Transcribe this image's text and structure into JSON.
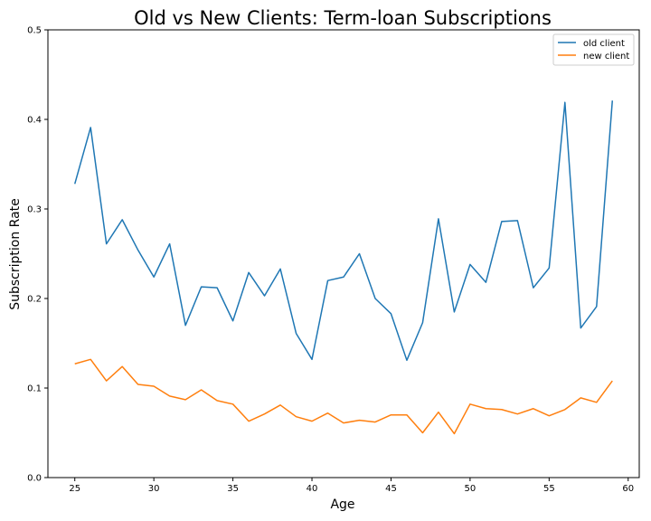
{
  "chart_data": {
    "type": "line",
    "title": "Old vs New Clients: Term-loan Subscriptions",
    "xlabel": "Age",
    "ylabel": "Subscription Rate",
    "xlim": [
      23.3,
      60.7
    ],
    "ylim": [
      0.0,
      0.5
    ],
    "xticks": [
      "25",
      "30",
      "35",
      "40",
      "45",
      "50",
      "55",
      "60"
    ],
    "yticks": [
      "0.0",
      "0.1",
      "0.2",
      "0.3",
      "0.4",
      "0.5"
    ],
    "grid": false,
    "legend_position": "top-right",
    "x": [
      25,
      26,
      27,
      28,
      29,
      30,
      31,
      32,
      33,
      34,
      35,
      36,
      37,
      38,
      39,
      40,
      41,
      42,
      43,
      44,
      45,
      46,
      47,
      48,
      49,
      50,
      51,
      52,
      53,
      54,
      55,
      56,
      57,
      58,
      59
    ],
    "series": [
      {
        "name": "old client",
        "color": "#1f77b4",
        "values": [
          0.328,
          0.391,
          0.261,
          0.288,
          0.254,
          0.224,
          0.261,
          0.17,
          0.213,
          0.212,
          0.175,
          0.229,
          0.203,
          0.233,
          0.161,
          0.132,
          0.22,
          0.224,
          0.25,
          0.2,
          0.183,
          0.131,
          0.173,
          0.289,
          0.185,
          0.238,
          0.218,
          0.286,
          0.287,
          0.212,
          0.234,
          0.419,
          0.167,
          0.191,
          0.421
        ]
      },
      {
        "name": "new client",
        "color": "#ff7f0e",
        "values": [
          0.127,
          0.132,
          0.108,
          0.124,
          0.104,
          0.102,
          0.091,
          0.087,
          0.098,
          0.086,
          0.082,
          0.063,
          0.071,
          0.081,
          0.068,
          0.063,
          0.072,
          0.061,
          0.064,
          0.062,
          0.07,
          0.07,
          0.05,
          0.073,
          0.049,
          0.082,
          0.077,
          0.076,
          0.071,
          0.077,
          0.069,
          0.076,
          0.089,
          0.084,
          0.108
        ]
      }
    ]
  }
}
